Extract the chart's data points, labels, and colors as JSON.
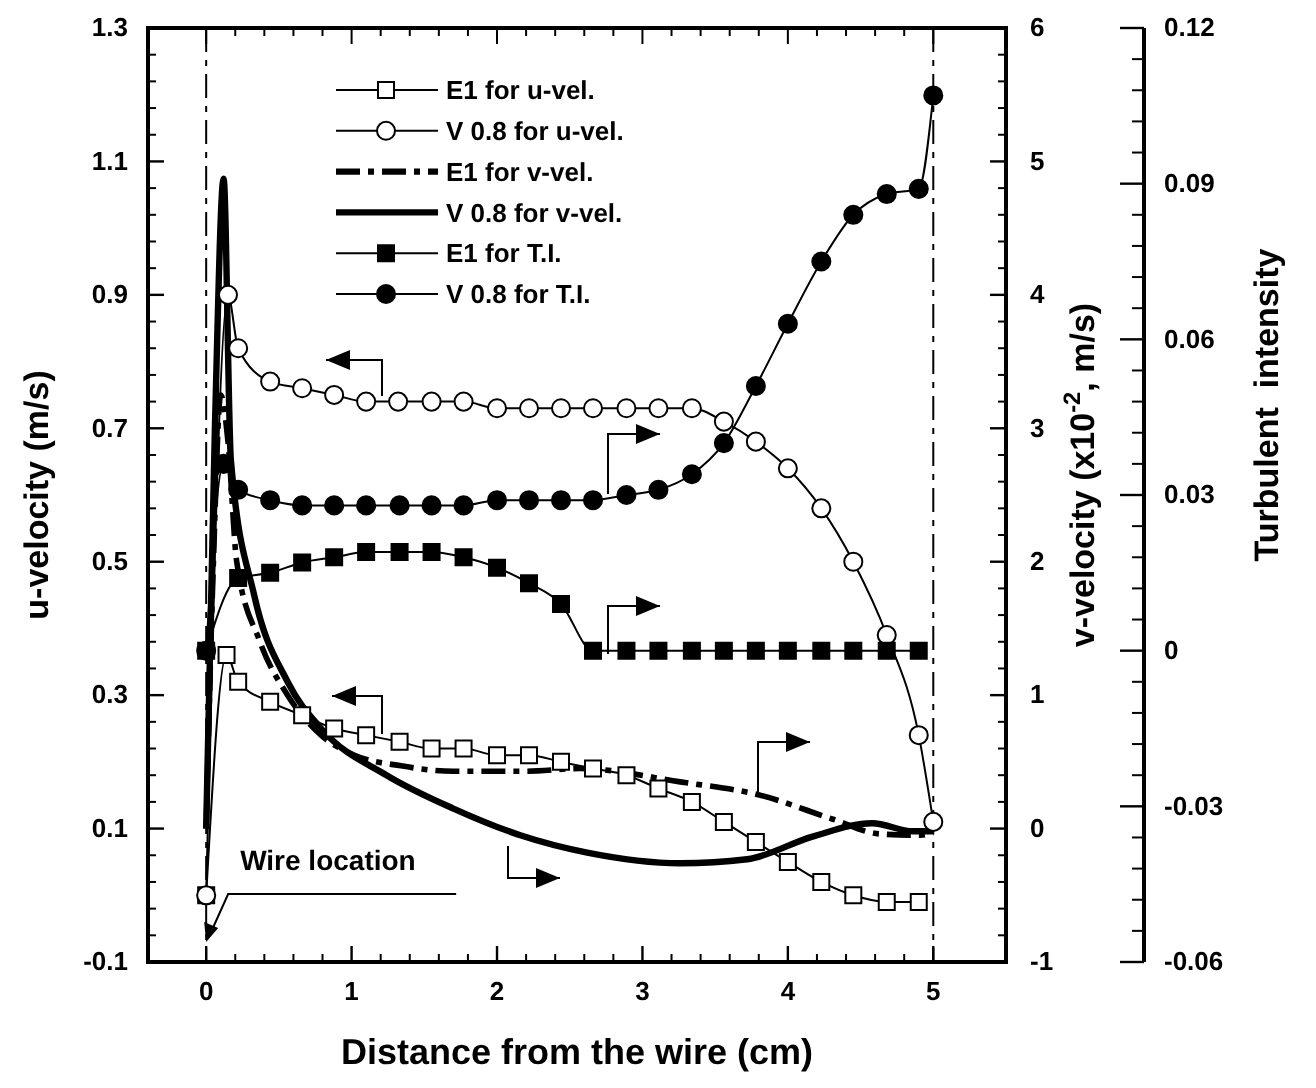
{
  "chart_data": {
    "type": "line",
    "xlabel": "Distance from the wire (cm)",
    "ylabel": "u-velocity (m/s)",
    "y2label": "v-velocity (x10$^{-2}$, m/s)",
    "y3label": "Turbulent  intensity",
    "xlim": [
      -0.4,
      5.5
    ],
    "xticks": [
      0,
      1,
      2,
      3,
      4,
      5
    ],
    "ylim": [
      -0.1,
      1.3
    ],
    "yticks": [
      -0.1,
      0.1,
      0.3,
      0.5,
      0.7,
      0.9,
      1.1,
      1.3
    ],
    "y2lim": [
      -1,
      6
    ],
    "y2ticks": [
      -1,
      0,
      1,
      2,
      3,
      4,
      5,
      6
    ],
    "y3lim": [
      -0.06,
      0.12
    ],
    "y3ticks": [
      -0.06,
      -0.03,
      0,
      0.03,
      0.06,
      0.09,
      0.12
    ],
    "legend": "top",
    "grid": false,
    "ref_lines": [
      {
        "axis": "x",
        "value": 0,
        "color": "#000000",
        "line_style": "dashdot"
      },
      {
        "axis": "x",
        "value": 5,
        "color": "#000000",
        "line_style": "dashdot"
      }
    ],
    "annotations": [
      {
        "text": "Wire location",
        "x": 0,
        "y": -0.07
      }
    ],
    "series": [
      {
        "name": "E1 for u-vel.",
        "color": "#000000",
        "axis": "y",
        "marker": "square",
        "colors": [
          "#ffffff",
          "#ffffff",
          "#ffffff",
          "#ffffff",
          "#ffffff",
          "#ffffff",
          "#ffffff",
          "#ffffff",
          "#ffffff",
          "#ffffff",
          "#ffffff",
          "#ffffff",
          "#ffffff",
          "#ffffff",
          "#ffffff",
          "#ffffff",
          "#ffffff",
          "#ffffff",
          "#ffffff",
          "#ffffff",
          "#ffffff",
          "#ffffff",
          "#ffffff",
          "#ffffff"
        ],
        "line_style": "solid",
        "x": [
          0,
          0.14,
          0.22,
          0.44,
          0.66,
          0.88,
          1.1,
          1.33,
          1.55,
          1.77,
          2.0,
          2.22,
          2.44,
          2.66,
          2.89,
          3.11,
          3.34,
          3.56,
          3.78,
          4.0,
          4.23,
          4.45,
          4.68,
          4.9
        ],
        "values": [
          0.0,
          0.36,
          0.32,
          0.29,
          0.27,
          0.25,
          0.24,
          0.23,
          0.22,
          0.22,
          0.21,
          0.21,
          0.2,
          0.19,
          0.18,
          0.16,
          0.14,
          0.11,
          0.08,
          0.05,
          0.02,
          0.0,
          -0.01,
          -0.01
        ]
      },
      {
        "name": "V 0.8 for u-vel.",
        "color": "#000000",
        "axis": "y",
        "marker": "circle",
        "colors": [
          "#ffffff",
          "#ffffff",
          "#ffffff",
          "#ffffff",
          "#ffffff",
          "#ffffff",
          "#ffffff",
          "#ffffff",
          "#ffffff",
          "#ffffff",
          "#ffffff",
          "#ffffff",
          "#ffffff",
          "#ffffff",
          "#ffffff",
          "#ffffff",
          "#ffffff",
          "#ffffff",
          "#ffffff",
          "#ffffff",
          "#ffffff",
          "#ffffff",
          "#ffffff",
          "#ffffff",
          "#ffffff"
        ],
        "line_style": "solid",
        "x": [
          0,
          0.15,
          0.22,
          0.44,
          0.66,
          0.88,
          1.1,
          1.32,
          1.55,
          1.77,
          2.0,
          2.22,
          2.44,
          2.66,
          2.89,
          3.11,
          3.34,
          3.56,
          3.78,
          4.0,
          4.23,
          4.45,
          4.68,
          4.9,
          5.0
        ],
        "values": [
          0.0,
          0.9,
          0.82,
          0.77,
          0.76,
          0.75,
          0.74,
          0.74,
          0.74,
          0.74,
          0.73,
          0.73,
          0.73,
          0.73,
          0.73,
          0.73,
          0.73,
          0.71,
          0.68,
          0.64,
          0.58,
          0.5,
          0.39,
          0.24,
          0.11
        ]
      },
      {
        "name": "E1 for v-vel.",
        "color": "#000000",
        "axis": "y2",
        "marker": "none",
        "line_style": "dashdot",
        "x": [
          0,
          0.05,
          0.1,
          0.15,
          0.21,
          0.37,
          0.56,
          0.79,
          1.02,
          1.34,
          1.7,
          2.2,
          2.57,
          3.26,
          3.81,
          4.31,
          4.63,
          4.91,
          5.0
        ],
        "values": [
          0,
          2.0,
          3.25,
          2.9,
          2.0,
          1.4,
          1.0,
          0.7,
          0.55,
          0.47,
          0.43,
          0.43,
          0.45,
          0.35,
          0.25,
          0.07,
          -0.04,
          -0.05,
          -0.03
        ]
      },
      {
        "name": "V 0.8 for v-vel.",
        "color": "#000000",
        "axis": "y2",
        "marker": "none",
        "line_style": "solid",
        "x": [
          0,
          0.06,
          0.12,
          0.17,
          0.33,
          0.56,
          0.79,
          1.24,
          1.7,
          2.16,
          2.62,
          3.26,
          3.72,
          4.17,
          4.58,
          4.86,
          5.0
        ],
        "values": [
          0,
          3.0,
          4.87,
          2.76,
          1.75,
          1.1,
          0.75,
          0.4,
          0.15,
          -0.05,
          -0.18,
          -0.26,
          -0.23,
          -0.06,
          0.04,
          -0.02,
          -0.02
        ]
      },
      {
        "name": "E1 for T.I.",
        "color": "#000000",
        "axis": "y3",
        "marker": "square",
        "line_style": "solid",
        "x": [
          0,
          0.22,
          0.44,
          0.66,
          0.88,
          1.1,
          1.33,
          1.55,
          1.77,
          2.0,
          2.22,
          2.44,
          2.66,
          2.89,
          3.11,
          3.34,
          3.56,
          3.78,
          4.0,
          4.23,
          4.45,
          4.68,
          4.9
        ],
        "values": [
          0,
          0.014,
          0.015,
          0.017,
          0.018,
          0.019,
          0.019,
          0.019,
          0.018,
          0.016,
          0.013,
          0.009,
          0,
          0,
          0,
          0,
          0,
          0,
          0,
          0,
          0,
          0,
          0
        ]
      },
      {
        "name": "V 0.8 for T.I.",
        "color": "#000000",
        "axis": "y3",
        "marker": "circle",
        "line_style": "solid",
        "x": [
          0,
          0.12,
          0.22,
          0.44,
          0.66,
          0.88,
          1.1,
          1.33,
          1.55,
          1.77,
          2.0,
          2.22,
          2.44,
          2.66,
          2.89,
          3.11,
          3.34,
          3.56,
          3.78,
          4.0,
          4.23,
          4.45,
          4.68,
          4.9,
          5.0
        ],
        "values": [
          0,
          0.036,
          0.031,
          0.029,
          0.028,
          0.028,
          0.028,
          0.028,
          0.028,
          0.028,
          0.029,
          0.029,
          0.029,
          0.029,
          0.03,
          0.031,
          0.034,
          0.04,
          0.051,
          0.063,
          0.075,
          0.084,
          0.088,
          0.089,
          0.107
        ]
      }
    ]
  }
}
